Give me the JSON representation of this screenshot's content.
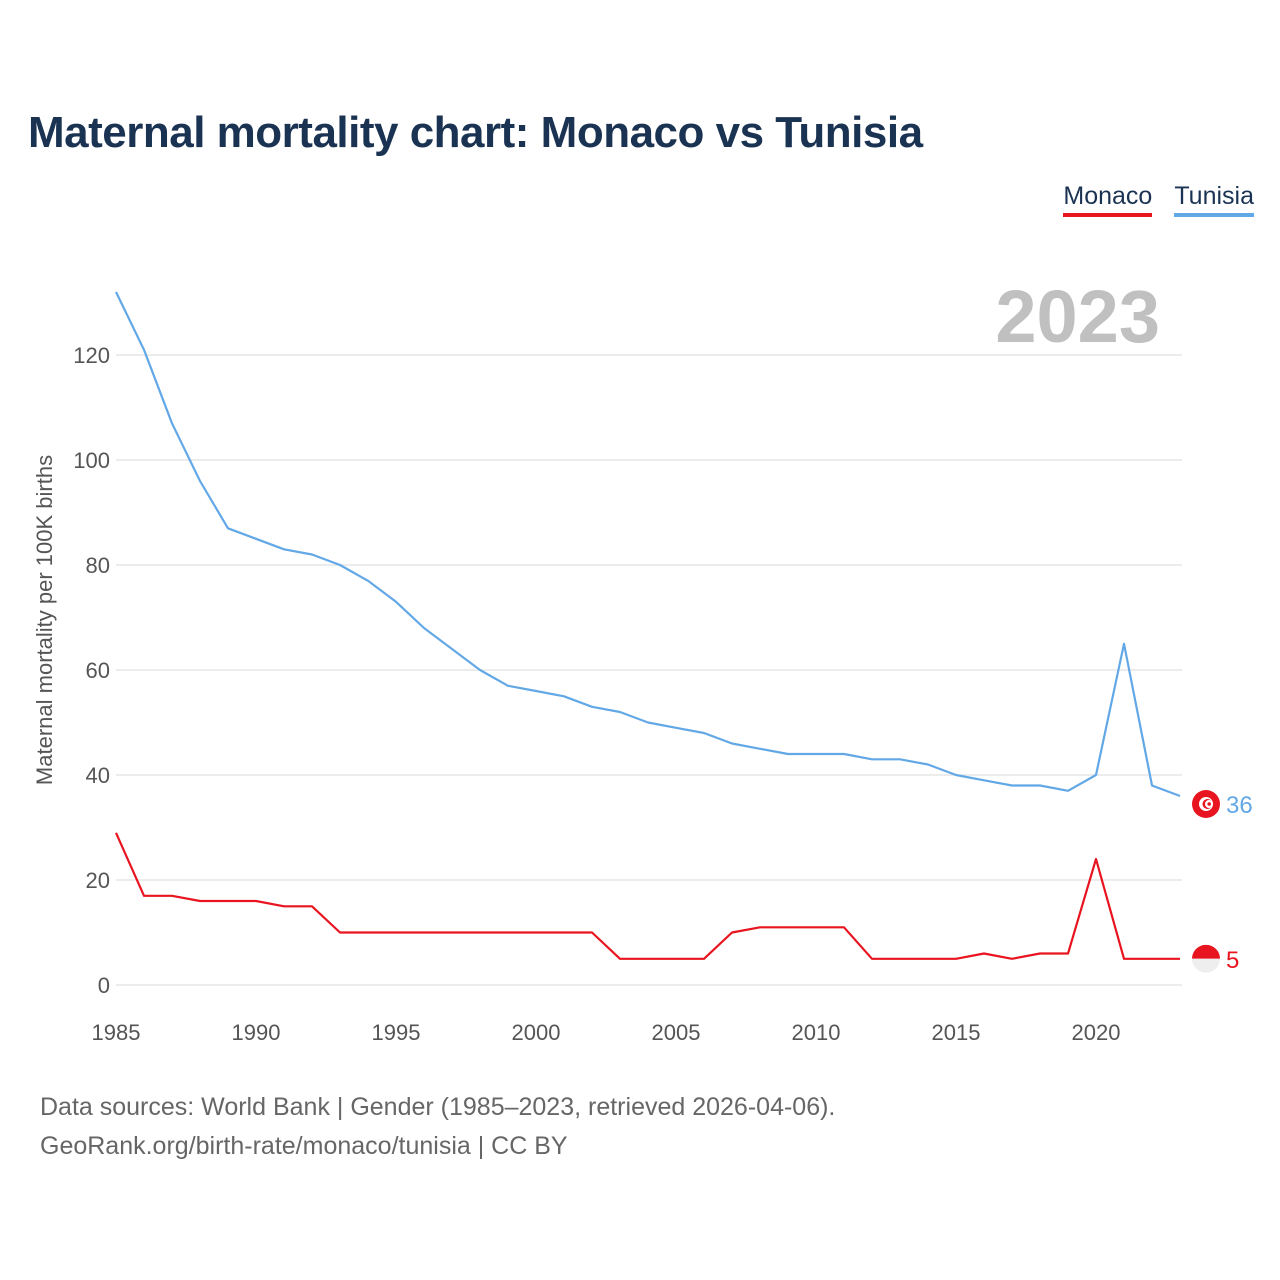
{
  "title": "Maternal mortality chart: Monaco vs Tunisia",
  "legend": {
    "monaco": "Monaco",
    "tunisia": "Tunisia"
  },
  "year_label": "2023",
  "footer": {
    "line1": "Data sources: World Bank | Gender (1985–2023, retrieved 2026-04-06).",
    "line2": "GeoRank.org/birth-rate/monaco/tunisia | CC BY"
  },
  "chart_data": {
    "type": "line",
    "title": "Maternal mortality chart: Monaco vs Tunisia",
    "xlabel": "",
    "ylabel": "Maternal mortality per 100K births",
    "x": [
      1985,
      1986,
      1987,
      1988,
      1989,
      1990,
      1991,
      1992,
      1993,
      1994,
      1995,
      1996,
      1997,
      1998,
      1999,
      2000,
      2001,
      2002,
      2003,
      2004,
      2005,
      2006,
      2007,
      2008,
      2009,
      2010,
      2011,
      2012,
      2013,
      2014,
      2015,
      2016,
      2017,
      2018,
      2019,
      2020,
      2021,
      2022,
      2023
    ],
    "xlim": [
      1985,
      2023
    ],
    "ylim": [
      0,
      132
    ],
    "x_ticks": [
      "1985",
      "1990",
      "1995",
      "2000",
      "2005",
      "2010",
      "2015",
      "2020"
    ],
    "y_ticks": [
      "0",
      "20",
      "40",
      "60",
      "80",
      "100",
      "120"
    ],
    "grid": true,
    "legend_position": "top-right",
    "series": [
      {
        "name": "Monaco",
        "color": "#e8141f",
        "end_label": "5",
        "values": [
          29,
          17,
          17,
          16,
          16,
          16,
          15,
          15,
          10,
          10,
          10,
          10,
          10,
          10,
          10,
          10,
          10,
          10,
          5,
          5,
          5,
          5,
          10,
          11,
          11,
          11,
          11,
          5,
          5,
          5,
          5,
          6,
          5,
          6,
          6,
          24,
          5,
          5,
          5
        ]
      },
      {
        "name": "Tunisia",
        "color": "#62a8e6",
        "end_label": "36",
        "values": [
          132,
          121,
          107,
          96,
          87,
          85,
          83,
          82,
          80,
          77,
          73,
          68,
          64,
          60,
          57,
          56,
          55,
          53,
          52,
          50,
          49,
          48,
          46,
          45,
          44,
          44,
          44,
          43,
          43,
          42,
          40,
          39,
          38,
          38,
          37,
          40,
          65,
          38,
          36
        ]
      }
    ]
  }
}
